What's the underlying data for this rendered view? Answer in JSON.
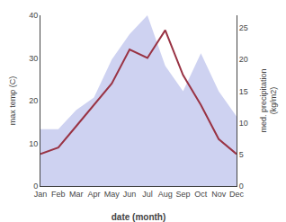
{
  "chart_data": {
    "type": "line",
    "xlabel": "date (month)",
    "ylabel": "max temp (C)",
    "y2label": "med. precipitation\n(kg/m2)",
    "categories": [
      "Jan",
      "Feb",
      "Mar",
      "Apr",
      "May",
      "Jun",
      "Jul",
      "Aug",
      "Sep",
      "Oct",
      "Nov",
      "Dec"
    ],
    "series": [
      {
        "type": "area",
        "axis": "y2",
        "color": "#c5caef",
        "values": [
          9.0,
          9.0,
          12.0,
          14.0,
          20.0,
          24.0,
          27.0,
          19.0,
          15.0,
          21.0,
          15.0,
          11.0
        ]
      },
      {
        "type": "line",
        "color": "#993344",
        "values": [
          7.5,
          9.0,
          14.0,
          19.0,
          24.0,
          32.0,
          30.0,
          36.5,
          26.0,
          19.0,
          11.0,
          7.5
        ]
      }
    ],
    "ylim": [
      0,
      40
    ],
    "yticks": [
      0,
      10,
      20,
      30,
      40
    ],
    "y2lim": [
      0,
      27
    ],
    "y2ticks": [
      0,
      5,
      10,
      15,
      20,
      25
    ],
    "grid": false
  }
}
